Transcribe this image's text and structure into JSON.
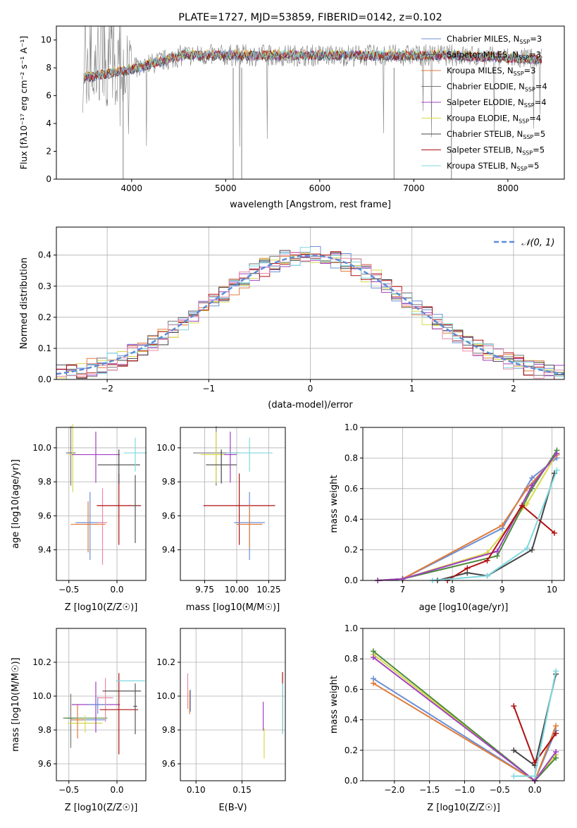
{
  "chart_data": [
    {
      "type": "line",
      "title": "PLATE=1727, MJD=53859, FIBERID=0142, z=0.102",
      "xlabel": "wavelength [Angstrom, rest frame]",
      "ylabel": "Flux [fλ10⁻¹⁷ erg cm⁻² s⁻¹ A⁻¹]",
      "xlim": [
        3200,
        8600
      ],
      "ylim": [
        0,
        11
      ],
      "xticks": [
        4000,
        5000,
        6000,
        7000,
        8000
      ],
      "yticks": [
        0,
        2,
        4,
        6,
        8,
        10
      ],
      "legend_position": "right",
      "series": [
        {
          "name": "Chabrier MILES, N_SSP=3",
          "color": "#6c8ed4"
        },
        {
          "name": "Salpeter MILES, N_SSP=3",
          "color": "#555555"
        },
        {
          "name": "Kroupa MILES, N_SSP=3",
          "color": "#e07b39"
        },
        {
          "name": "Chabrier ELODIE, N_SSP=4",
          "color": "#777777"
        },
        {
          "name": "Salpeter ELODIE, N_SSP=4",
          "color": "#a040c0"
        },
        {
          "name": "Kroupa ELODIE, N_SSP=4",
          "color": "#d8d84a"
        },
        {
          "name": "Chabrier STELIB, N_SSP=5",
          "color": "#444444"
        },
        {
          "name": "Salpeter STELIB, N_SSP=5",
          "color": "#b01010"
        },
        {
          "name": "Kroupa STELIB, N_SSP=5",
          "color": "#7fd8e0"
        }
      ]
    },
    {
      "type": "line",
      "xlabel": "(data-model)/error",
      "ylabel": "Normed distribution",
      "xlim": [
        -2.5,
        2.5
      ],
      "ylim": [
        0,
        0.49
      ],
      "xticks": [
        -2,
        -1,
        0,
        1,
        2
      ],
      "xtick_labels": [
        "−2",
        "−1",
        "0",
        "1",
        "2"
      ],
      "yticks": [
        0.0,
        0.1,
        0.2,
        0.3,
        0.4
      ],
      "grid": true,
      "legend": "𝒩(0, 1)",
      "legend_position": "top-right",
      "x": [
        -2.5,
        -2.0,
        -1.5,
        -1.0,
        -0.5,
        0.0,
        0.5,
        1.0,
        1.5,
        2.0,
        2.5
      ],
      "normal_values": [
        0.018,
        0.054,
        0.13,
        0.242,
        0.352,
        0.399,
        0.352,
        0.242,
        0.13,
        0.054,
        0.018
      ]
    },
    {
      "type": "scatter",
      "xlabel": "Z [log10(Z/Z☉)]",
      "ylabel": "age  [log10(age/yr)]",
      "xlim": [
        -0.63,
        0.3
      ],
      "ylim": [
        9.22,
        10.12
      ],
      "xticks": [
        -0.5,
        0.0
      ],
      "xtick_labels": [
        "−0.5",
        "0.0"
      ],
      "yticks": [
        9.4,
        9.6,
        9.8,
        10.0
      ],
      "grid": true,
      "points": [
        {
          "x": -0.48,
          "y": 9.97,
          "xerr": 0.05,
          "yerr": 0.35,
          "color": "#777777"
        },
        {
          "x": -0.46,
          "y": 9.96,
          "xerr": 0.04,
          "yerr": 0.4,
          "color": "#d8d84a"
        },
        {
          "x": -0.3,
          "y": 9.55,
          "xerr": 0.18,
          "yerr": 0.3,
          "color": "#e07b39"
        },
        {
          "x": -0.28,
          "y": 9.56,
          "xerr": 0.15,
          "yerr": 0.4,
          "color": "#6c8ed4"
        },
        {
          "x": -0.22,
          "y": 9.96,
          "xerr": 0.25,
          "yerr": 0.3,
          "color": "#a040c0"
        },
        {
          "x": -0.15,
          "y": 9.56,
          "xerr": 0.05,
          "yerr": 0.45,
          "color": "#e88aa8"
        },
        {
          "x": 0.02,
          "y": 9.66,
          "xerr": 0.23,
          "yerr": 0.42,
          "color": "#b01010"
        },
        {
          "x": 0.02,
          "y": 9.9,
          "xerr": 0.22,
          "yerr": 0.2,
          "color": "#444444"
        },
        {
          "x": 0.19,
          "y": 9.97,
          "xerr": 0.12,
          "yerr": 0.2,
          "color": "#7fd8e0"
        },
        {
          "x": 0.19,
          "y": 9.66,
          "xerr": 0.02,
          "yerr": 0.4,
          "color": "#555555"
        }
      ]
    },
    {
      "type": "scatter",
      "xlabel": "mass [log10(M/M☉)]",
      "xlim": [
        9.56,
        10.38
      ],
      "ylim": [
        9.22,
        10.12
      ],
      "xticks": [
        9.75,
        10.0,
        10.25
      ],
      "xtick_labels": [
        "9.75",
        "10.00",
        "10.25"
      ],
      "yticks": [
        9.4,
        9.6,
        9.8,
        10.0
      ],
      "grid": true,
      "points": [
        {
          "x": 9.84,
          "y": 9.97,
          "xerr": 0.18,
          "yerr": 0.35,
          "color": "#777777"
        },
        {
          "x": 9.84,
          "y": 9.96,
          "xerr": 0.12,
          "yerr": 0.3,
          "color": "#d8d84a"
        },
        {
          "x": 9.88,
          "y": 9.9,
          "xerr": 0.12,
          "yerr": 0.2,
          "color": "#444444"
        },
        {
          "x": 9.95,
          "y": 9.96,
          "xerr": 0.05,
          "yerr": 0.3,
          "color": "#a040c0"
        },
        {
          "x": 10.02,
          "y": 9.66,
          "xerr": 0.28,
          "yerr": 0.42,
          "color": "#b01010"
        },
        {
          "x": 10.1,
          "y": 9.97,
          "xerr": 0.18,
          "yerr": 0.2,
          "color": "#7fd8e0"
        },
        {
          "x": 10.1,
          "y": 9.56,
          "xerr": 0.12,
          "yerr": 0.4,
          "color": "#6c8ed4"
        },
        {
          "x": 10.1,
          "y": 9.55,
          "xerr": 0.1,
          "yerr": 0.25,
          "color": "#e07b39"
        }
      ]
    },
    {
      "type": "line",
      "xlabel": "age  [log10(age/yr)]",
      "ylabel": "mass weight",
      "xlim": [
        6.2,
        10.25
      ],
      "ylim": [
        0,
        1.0
      ],
      "xticks": [
        7,
        8,
        9,
        10
      ],
      "yticks": [
        0.0,
        0.2,
        0.4,
        0.6,
        0.8,
        1.0
      ],
      "grid": true,
      "series": [
        {
          "color": "#6c8ed4",
          "x": [
            6.5,
            7.0,
            9.0,
            9.6,
            10.1
          ],
          "y": [
            0.0,
            0.01,
            0.34,
            0.67,
            0.8
          ]
        },
        {
          "color": "#e07b39",
          "x": [
            6.5,
            7.0,
            9.0,
            9.5,
            10.1
          ],
          "y": [
            0.0,
            0.01,
            0.36,
            0.6,
            0.82
          ]
        },
        {
          "color": "#d8d84a",
          "x": [
            6.5,
            7.0,
            8.7,
            9.5,
            10.1
          ],
          "y": [
            0.0,
            0.01,
            0.18,
            0.5,
            0.83
          ]
        },
        {
          "color": "#4a8a3a",
          "x": [
            6.5,
            7.0,
            8.9,
            9.6,
            10.1
          ],
          "y": [
            0.0,
            0.01,
            0.16,
            0.6,
            0.85
          ]
        },
        {
          "color": "#a040c0",
          "x": [
            6.5,
            7.0,
            8.9,
            9.6,
            10.1
          ],
          "y": [
            0.0,
            0.01,
            0.19,
            0.62,
            0.83
          ]
        },
        {
          "color": "#444444",
          "x": [
            7.7,
            8.3,
            8.7,
            9.6,
            10.05
          ],
          "y": [
            0.0,
            0.05,
            0.03,
            0.2,
            0.7
          ]
        },
        {
          "color": "#b01010",
          "x": [
            7.9,
            8.3,
            8.7,
            9.4,
            10.05
          ],
          "y": [
            0.0,
            0.08,
            0.13,
            0.49,
            0.31
          ]
        },
        {
          "color": "#7fd8e0",
          "x": [
            7.6,
            8.7,
            9.5,
            10.1
          ],
          "y": [
            0.0,
            0.03,
            0.21,
            0.72
          ]
        }
      ]
    },
    {
      "type": "scatter",
      "xlabel": "Z [log10(Z/Z☉)]",
      "ylabel": "mass [log10(M/M☉)]",
      "xlim": [
        -0.63,
        0.3
      ],
      "ylim": [
        9.5,
        10.4
      ],
      "xticks": [
        -0.5,
        0.0
      ],
      "xtick_labels": [
        "−0.5",
        "0.0"
      ],
      "yticks": [
        9.6,
        9.8,
        10.0,
        10.2
      ],
      "grid": true,
      "points": [
        {
          "x": -0.48,
          "y": 9.87,
          "xerr": 0.06,
          "yerr": 0.32,
          "color": "#777777"
        },
        {
          "x": -0.33,
          "y": 9.87,
          "xerr": 0.23,
          "yerr": 0.0,
          "color": "#4a8a3a"
        },
        {
          "x": -0.3,
          "y": 9.86,
          "xerr": 0.18,
          "yerr": 0.0,
          "color": "#6c8ed4"
        },
        {
          "x": -0.33,
          "y": 9.84,
          "xerr": 0.18,
          "yerr": 0.1,
          "color": "#d8d84a"
        },
        {
          "x": -0.41,
          "y": 9.86,
          "xerr": 0.06,
          "yerr": 0.2,
          "color": "#e07b39"
        },
        {
          "x": -0.22,
          "y": 9.95,
          "xerr": 0.25,
          "yerr": 0.3,
          "color": "#a040c0"
        },
        {
          "x": -0.2,
          "y": 9.95,
          "xerr": 0.1,
          "yerr": 0.1,
          "color": "#6c8ed4"
        },
        {
          "x": -0.12,
          "y": 9.99,
          "xerr": 0.08,
          "yerr": 0.26,
          "color": "#e88aa8"
        },
        {
          "x": 0.02,
          "y": 9.92,
          "xerr": 0.2,
          "yerr": 0.48,
          "color": "#b01010"
        },
        {
          "x": 0.05,
          "y": 10.03,
          "xerr": 0.2,
          "yerr": 0.0,
          "color": "#444444"
        },
        {
          "x": 0.14,
          "y": 10.09,
          "xerr": 0.15,
          "yerr": 0.0,
          "color": "#7fd8e0"
        },
        {
          "x": 0.19,
          "y": 9.94,
          "xerr": 0.02,
          "yerr": 0.3,
          "color": "#555555"
        }
      ]
    },
    {
      "type": "scatter",
      "xlabel": "E(B-V)",
      "xlim": [
        0.083,
        0.197
      ],
      "ylim": [
        9.5,
        10.4
      ],
      "xticks": [
        0.1,
        0.15
      ],
      "xtick_labels": [
        "0.10",
        "0.15"
      ],
      "yticks": [
        9.6,
        9.8,
        10.0,
        10.2
      ],
      "grid": true,
      "points": [
        {
          "x": 0.091,
          "y": 10.04,
          "yerr": 0.21,
          "color": "#e88aa8"
        },
        {
          "x": 0.093,
          "y": 9.97,
          "yerr": 0.14,
          "color": "#e07b39"
        },
        {
          "x": 0.094,
          "y": 9.98,
          "yerr": 0.13,
          "color": "#6c8ed4"
        },
        {
          "x": 0.173,
          "y": 9.89,
          "yerr": 0.17,
          "color": "#a040c0"
        },
        {
          "x": 0.174,
          "y": 9.73,
          "yerr": 0.18,
          "color": "#d8d84a"
        },
        {
          "x": 0.194,
          "y": 9.98,
          "yerr": 0.36,
          "color": "#b01010"
        },
        {
          "x": 0.194,
          "y": 9.94,
          "yerr": 0.3,
          "color": "#7fd8e0"
        }
      ]
    },
    {
      "type": "line",
      "xlabel": "Z [log10(Z/Z☉)]",
      "ylabel": "mass weight",
      "xlim": [
        -2.45,
        0.42
      ],
      "ylim": [
        0,
        1.0
      ],
      "xticks": [
        -2.0,
        -1.5,
        -1.0,
        -0.5,
        0.0
      ],
      "xtick_labels": [
        "−2.0",
        "−1.5",
        "−1.0",
        "−0.5",
        "0.0"
      ],
      "yticks": [
        0.0,
        0.2,
        0.4,
        0.6,
        0.8,
        1.0
      ],
      "grid": true,
      "series": [
        {
          "color": "#6c8ed4",
          "x": [
            -2.3,
            0.0,
            0.3
          ],
          "y": [
            0.67,
            0.0,
            0.33
          ]
        },
        {
          "color": "#e07b39",
          "x": [
            -2.3,
            0.0,
            0.3
          ],
          "y": [
            0.64,
            0.0,
            0.36
          ]
        },
        {
          "color": "#d8d84a",
          "x": [
            -2.3,
            0.0,
            0.3
          ],
          "y": [
            0.83,
            0.0,
            0.17
          ]
        },
        {
          "color": "#4a8a3a",
          "x": [
            -2.3,
            0.0,
            0.3
          ],
          "y": [
            0.85,
            0.0,
            0.15
          ]
        },
        {
          "color": "#a040c0",
          "x": [
            -2.3,
            0.0,
            0.3
          ],
          "y": [
            0.81,
            0.0,
            0.19
          ]
        },
        {
          "color": "#444444",
          "x": [
            -0.3,
            0.0,
            0.3
          ],
          "y": [
            0.2,
            0.1,
            0.7
          ]
        },
        {
          "color": "#b01010",
          "x": [
            -0.3,
            0.0,
            0.3
          ],
          "y": [
            0.49,
            0.12,
            0.31
          ]
        },
        {
          "color": "#7fd8e0",
          "x": [
            -0.3,
            0.0,
            0.3
          ],
          "y": [
            0.03,
            0.03,
            0.72
          ]
        }
      ]
    }
  ]
}
